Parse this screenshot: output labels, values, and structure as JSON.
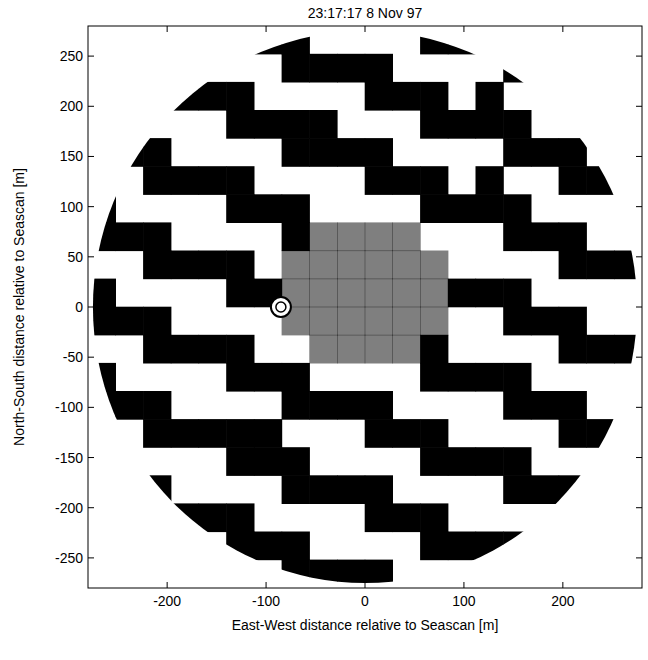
{
  "chart_data": {
    "type": "heatmap",
    "title": "23:17:17 8 Nov 97",
    "x_label": "East-West distance relative to Seascan [m]",
    "y_label": "North-South distance relative to Seascan [m]",
    "xlim": [
      -280,
      280
    ],
    "ylim": [
      -280,
      280
    ],
    "xticks": [
      -200,
      -100,
      0,
      100,
      200
    ],
    "yticks": [
      -250,
      -200,
      -150,
      -100,
      -50,
      0,
      50,
      100,
      150,
      200,
      250
    ],
    "radius": 275,
    "color": "#000000",
    "grid": false,
    "cells": [
      [
        null,
        null,
        null,
        null,
        null,
        null,
        1,
        1,
        0,
        0,
        0,
        0,
        1,
        1,
        null,
        null,
        null,
        null,
        null,
        null
      ],
      [
        null,
        null,
        null,
        null,
        0,
        0,
        0,
        1,
        1,
        1,
        1,
        0,
        0,
        0,
        0,
        1,
        null,
        null,
        null,
        null
      ],
      [
        null,
        null,
        null,
        1,
        1,
        1,
        0,
        0,
        0,
        0,
        1,
        1,
        1,
        0,
        1,
        0,
        0,
        null,
        null,
        null
      ],
      [
        null,
        null,
        0,
        0,
        0,
        1,
        1,
        1,
        1,
        0,
        0,
        0,
        1,
        1,
        1,
        1,
        0,
        0,
        null,
        null
      ],
      [
        null,
        1,
        1,
        0,
        0,
        0,
        0,
        1,
        1,
        1,
        1,
        0,
        0,
        0,
        0,
        1,
        1,
        1,
        0,
        null
      ],
      [
        null,
        0,
        1,
        1,
        1,
        1,
        0,
        0,
        0,
        0,
        1,
        1,
        1,
        0,
        1,
        0,
        0,
        1,
        1,
        null
      ],
      [
        1,
        0,
        0,
        0,
        0,
        1,
        1,
        1,
        0,
        0,
        0,
        0,
        1,
        1,
        1,
        1,
        0,
        0,
        0,
        0
      ],
      [
        1,
        1,
        1,
        0,
        0,
        0,
        0,
        1,
        0.5,
        0.5,
        0.5,
        0.5,
        0,
        0,
        0,
        1,
        1,
        1,
        0,
        0
      ],
      [
        0,
        0,
        1,
        1,
        1,
        1,
        0,
        0.5,
        0.5,
        0.5,
        0.5,
        0.5,
        0.5,
        0,
        0,
        0,
        0,
        1,
        1,
        1
      ],
      [
        1,
        0,
        0,
        0,
        0,
        1,
        1,
        0.5,
        0.5,
        0.5,
        0.5,
        0.5,
        0.5,
        1,
        1,
        1,
        0,
        0,
        0,
        0
      ],
      [
        1,
        1,
        1,
        0,
        0,
        0,
        0,
        0.5,
        0.5,
        0.5,
        0.5,
        0.5,
        0.5,
        0,
        0,
        1,
        1,
        1,
        0,
        0
      ],
      [
        0,
        0,
        1,
        1,
        1,
        1,
        0,
        0,
        0.5,
        0.5,
        0.5,
        0.5,
        1,
        0,
        0,
        0,
        0,
        1,
        1,
        1
      ],
      [
        1,
        0,
        0,
        0,
        0,
        1,
        1,
        1,
        0,
        0,
        0,
        0,
        1,
        1,
        1,
        1,
        0,
        0,
        0,
        0
      ],
      [
        1,
        1,
        1,
        0,
        0,
        0,
        0,
        1,
        1,
        1,
        1,
        0,
        0,
        0,
        0,
        1,
        1,
        1,
        0,
        0
      ],
      [
        null,
        0,
        1,
        1,
        1,
        1,
        1,
        0,
        0,
        0,
        1,
        1,
        1,
        0,
        0,
        0,
        0,
        1,
        1,
        null
      ],
      [
        null,
        0,
        0,
        0,
        0,
        1,
        1,
        1,
        0,
        0,
        0,
        0,
        1,
        1,
        1,
        1,
        0,
        0,
        0,
        null
      ],
      [
        null,
        null,
        1,
        0,
        0,
        0,
        0,
        1,
        1,
        1,
        1,
        0,
        0,
        0,
        0,
        1,
        1,
        1,
        null,
        null
      ],
      [
        null,
        null,
        null,
        1,
        1,
        1,
        0,
        0,
        0,
        0,
        1,
        1,
        1,
        0,
        0,
        0,
        0,
        null,
        null,
        null
      ],
      [
        null,
        null,
        null,
        null,
        0,
        1,
        1,
        1,
        0,
        0,
        0,
        0,
        1,
        1,
        1,
        1,
        null,
        null,
        null,
        null
      ],
      [
        null,
        null,
        null,
        null,
        null,
        null,
        0,
        1,
        1,
        1,
        1,
        0,
        0,
        0,
        null,
        null,
        null,
        null,
        null,
        null
      ]
    ],
    "points": [
      {
        "x": -85,
        "y": 0
      }
    ],
    "marker": "circle"
  }
}
